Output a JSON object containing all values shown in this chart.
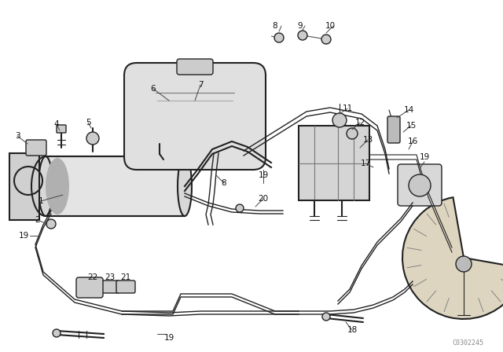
{
  "bg_color": "#ffffff",
  "line_color": "#222222",
  "label_color": "#111111",
  "watermark": "C0302245",
  "figsize": [
    6.4,
    4.48
  ],
  "dpi": 100,
  "xlim": [
    0,
    640
  ],
  "ylim": [
    0,
    448
  ],
  "gray_light": "#e8e8e8",
  "gray_mid": "#cccccc",
  "gray_dark": "#999999"
}
